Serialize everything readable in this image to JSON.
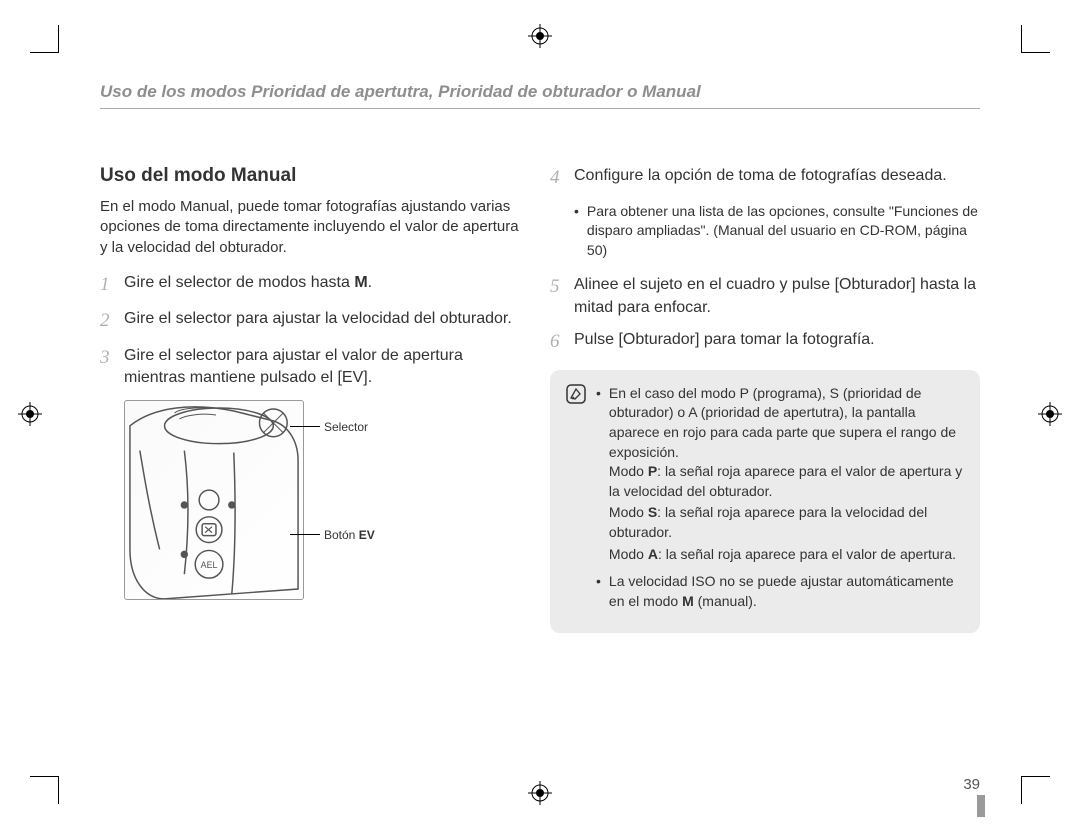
{
  "header": {
    "breadcrumb": "Uso de los modos Prioridad de apertutra, Prioridad de obturador o Manual"
  },
  "section": {
    "title": "Uso del modo Manual",
    "intro": "En el modo Manual, puede tomar fotografías ajustando varias opciones de toma directamente incluyendo el valor de apertura y la velocidad del obturador."
  },
  "steps_left": [
    {
      "num": "1",
      "html": "Gire el selector de modos hasta <b>M</b>."
    },
    {
      "num": "2",
      "html": "Gire el selector para ajustar la velocidad del obturador."
    },
    {
      "num": "3",
      "html": "Gire el selector para ajustar el valor de apertura mientras mantiene pulsado el [EV]."
    }
  ],
  "diagram": {
    "selector_label": "Selector",
    "ev_label_prefix": "Botón ",
    "ev_label_bold": "EV"
  },
  "steps_right": [
    {
      "num": "4",
      "html": "Configure la opción de toma de fotografías deseada.",
      "sub": [
        "Para obtener una lista de las opciones, consulte \"Funciones de disparo ampliadas\". (Manual del usuario en CD-ROM, página 50)"
      ]
    },
    {
      "num": "5",
      "html": "Alinee el sujeto en el cuadro y pulse [Obturador] hasta la mitad para enfocar."
    },
    {
      "num": "6",
      "html": "Pulse [Obturador] para tomar la fotografía."
    }
  ],
  "note": {
    "items": [
      {
        "lead": "En el caso del modo P (programa), S (prioridad de obturador) o A (prioridad de apertutra), la pantalla aparece en rojo para cada parte que supera el rango de exposición.",
        "lines": [
          "Modo <b>P</b>: la señal roja aparece para el valor de apertura y la velocidad del obturador.",
          "Modo <b>S</b>: la señal roja aparece para la velocidad del obturador.",
          "Modo <b>A</b>: la señal roja aparece para el valor de apertura."
        ]
      },
      {
        "lead": "La velocidad ISO no se puede ajustar automáticamente en el modo <b>M</b> (manual)."
      }
    ]
  },
  "page_number": "39"
}
